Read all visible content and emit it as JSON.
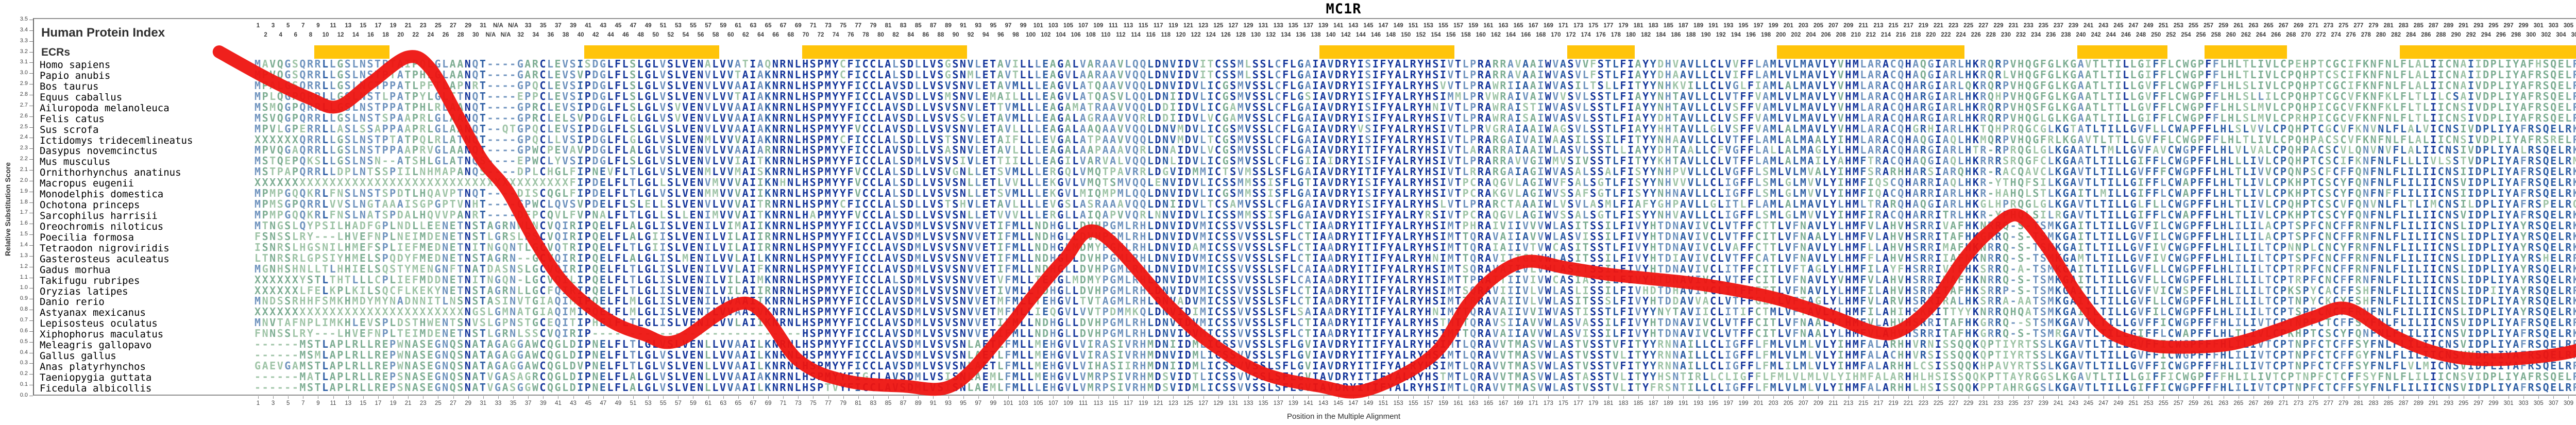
{
  "title": "MC1R",
  "panel": {
    "index_title": "Human Protein Index",
    "ecrs_label": "ECRs"
  },
  "y_axis": {
    "label": "Relative Substitution Score",
    "min": 0.0,
    "max": 3.5,
    "step": 0.1
  },
  "x_axis": {
    "label": "Position in the Multiple Alignment"
  },
  "ruler": {
    "gap_label": "N/A",
    "human_max": 317,
    "columns": 321,
    "gap_columns": [
      32,
      35
    ]
  },
  "colors": {
    "curve": "#EE1410",
    "ecr_bar": "#FFC40A",
    "tiers": [
      "#16379B",
      "#2F5FA5",
      "#6F93BE",
      "#7FAE94",
      "#9FC4A7"
    ],
    "plot_border": "#8f8f8f",
    "ruler_text": "#3c3c3c"
  },
  "ecr_bars": [
    [
      9,
      18
    ],
    [
      45,
      62
    ],
    [
      74,
      95
    ],
    [
      143,
      160
    ],
    [
      176,
      184
    ],
    [
      204,
      228
    ],
    [
      244,
      255
    ],
    [
      261,
      271
    ],
    [
      287,
      313
    ]
  ],
  "alignment": {
    "species": [
      {
        "name": "Homo sapiens",
        "seq": "MAVQGSQRRLLGSLNSTPTAIPQLGLAANQT----GARCLEVSISDGLFLSLGLVSLVENALVVATIAQNRNLHSPMYCFICCLALSDLLVSGSNVLETAVILLLEAGALVARAAVLQQLDNVIDVITCSSMLSSLCFLGAIAVDRYISIFYALRYHSIVTLPRARRAVAAIWVASVVFSTLFIAYYDHVAVLLCLVVFFLAMLVLMAVLYVHMLARACQHAQGIARLHKRQRPVHQGFGLKGAVTLTILLGIFFLCWGPFFLHLTLIVLCPEHPTCGCIFKNFNLFLALIICNAIIDPLIYAFHSQELRRTLKEVLTCSC"
      },
      {
        "name": "Papio anubis",
        "seq": "MPVQGSQRRLLGSLNSTPTATPHLGLAANQT----GARCLEVSVPDGLFLSLGLVSLVENVLVVTAIAKNRNLHSPMYCFICCLALSDLLVSGSNMLETAVTLLLEAGVLAARAAVVQQLDNVIDVITCSSMLSSLCFLGAIAVDRYISIFYALRYHSIVTLPRARRAVAAIWVASVLFSTLFIAYYDHAAVLLCLVIFFLAMLVLMAVLYVHMLARACQHAQGIARLHKRQRLVHQGFGLKGAATLTILLGIFFLCWGPFFLHLTLIVLCPQHPTCSCIFKNFNLFLALIICNAIIDPLIYAFRSQELRRTLKEVLLCSW"
      },
      {
        "name": "Bos taurus",
        "seq": "MPALGSQRRLLGSLNCTPPATLPFTLAPNRT----GPQCLEVSIPDGLFLSLGLVSLVENVLVVAAIAKNRNLHSPMYYFICCLAVSDLLVSVSNVLETAVMLLLEAGVLATQAAVVQQLDNVIDVLICGSMVSSLCFLGAIAVDRYISIFYALRYHSVVTLPRAWRIIAAIWVASILTSLLFITYYNHKVILLCLVGLFIAMLALMAVLYVHMLARACQHARGIARLQKRQRPVHQGFGLKGAATLTILLGVFFLCWGPFFLHLSLIVLCPQHPTCGCIFKNFNLFLALIICNAIVDPLIYAFRSQELRKTLQEVLQCSW"
      },
      {
        "name": "Equus caballus",
        "seq": "MPLQGPQRRLLGSLNSTLPATPYLGLTTNQT----EPPCLEVSIPDGLFLSLGLVSLVENVLVVTAIAKNRNLHSPMYYFICCLAVSDLLVSMSNVLEMAILLLLEAGVLATQASVLQQLDNIIDVLICGSMVSSLCFLGSIAVDRYISIFYALRYHSIMMLPRVWRAIVAIWVVSVLSSTLFIAYYNHTAVLLCLVTFFVAMLVLMAVLYVHMLARACQHARGIARLHKRQHPVHQGFGLKGAATLTILLGVFFLCWGPFFLHLSLLILCPQHPTCGCVFKNFKLFLTLILCSAIVDPLIYAFRSQELRKTLQEVLLCSW"
      },
      {
        "name": "Ailuropoda melanoleuca",
        "seq": "MSMQGPQRRLLGSLNSTPPATPHLRLAANQT----GPRCLEVSIPDGLFLSLGLVSVVENVLVVAAIAKNRNLHSPMYYFICCLAVSDLLVSVSNVLETTVMLLLEAGAMATRAAVVQQLDDIIDVLICGAMVSSLCFLGAIAVDRYISIFYALRYHNIVTLPRAWRAISTIWVASVLSSTLFIAYYNHTAVLLCLVSFFVAMLVLMAVLYVHMLARACQHARGIARLHKRQRPVHQSFGLKGAATLTTLLGVFFLCWGPFFLHLSLMVLCPQHPICGCVFKNFKLFLTLIICNSIVDPLIYAFRSQELRKTLQEVMLCSW"
      },
      {
        "name": "Felis catus",
        "seq": "MSVQGPQRRLLGSLNSTSPAAPRLGLAANQT----GPRCLELSVPDGLFLGLGLVSVVENVLVVAAIAKNRNLHSPMYYFICCLAVSDLLVSVSSVLETAVMLLLEAGALAGRAAVVQRLDDIIDVLVCGAMVSSLCFLGAIAVDRYISIFYALRYHSIVTLPRAWRAISAIWVASVLSSTLFIAYYDHTAVLLCLVSFFVAMLVLMAVLYVHMLARACQHARGIARLHKRQRPVHQGLGLKGAATLTILLGIFFLCWGPFFLHLSLMVLCPRHPICGCVFKNFNLFLTLIICNSIVDPLIYAFRSQELRKTLQEVLLCSW"
      },
      {
        "name": "Sus scrofa",
        "seq": "MPVLGPERRLLASLSSAPPAAPRLGLAANQT--QTGPQCLEVSIPDGLFLSLGLVSLVENVLVVAAIAKNRNLHSPMYYFVCCLAVSDLLVSVSNVLETAVLLLLEAGALAAQAAVVQQLDNVMDVLICGSMVSSLCFLGAIAVDRYVSIFYALRYHSIVTLPRVGRAIAAIWAGSVLSSTLFIAYYHHTAVLLGLVSFFVAMLALMAVLYVHMLARACQHGRHIARLHKTQHPRQGCGLKGTATLTILLGVFLLCWAPFFLHLSLVVLCPQHPTCGCVFKNVNLFLALVICNSIVDPLIYAFRSQELRKTLQEVLQCSW"
      },
      {
        "name": "Ictidomys tridecemlineatus",
        "seq": "XXXXXXQRRLLGSLNSTPTATPQLRLATNQT----GPQCLLVSIPDGLFLGLGLVSLVENMLVVVAIAKNRNLHSPMYCFICCLALSDLLVSTSNVLETAIFLLLEVGALATPAAVVQQLDNVMDVLTCGSMVSSLCFLGAIAVDRYISIFYALRYHSIVTLPRARGAIVAIWAASILSSILFITYYNHAAVLLCLVTFFLAMLALMAALYIHMLARACQHAQGIAQLHKMQRPVHQGFRLKGAVTLTTLLGVFFLCWGPFFLHLTLIVLCPQHPACSCVFKNFNLFLALIICNSIVDPLIYAFRSRELRLTLKEVLLCSW"
      },
      {
        "name": "Dasypus novemcinctus",
        "seq": "MPVQGAQRRLLGSLNSTPPAAPRVGLAANQT----GPWCPEVAVPDGLFLALGLVSLVENVLVVAAIARNRNLHSPMYYFICCLAVSDLLVSASNVLETAVLLLLEAGALAAPAAAVQRLDNAIDVLVCGSMVSSLCFLGAIAVDRYITIFYALRYHSIVTLARARRAIAAIWLASVLSSTLLIAYYDHTAALLCFVGFFLALLALMAGLYLHMLARACQHARGIARLHTR-RPRQGLGLKGAATLTMLLGVFAVCWGPFFLHLVLVALCPQHPACSCVLQNVNVFLALIICNSIVDPLIYALRSQELRKTFKEVLLCAX"
      },
      {
        "name": "Mus musculus",
        "seq": "MSTQEPQKSLLGSLNSN--ATSHLGLATNQS----EPWCLYVSIPDGLFLSLGLVSLVENVLVVIAITKNRNLHSPMYYFICCLALSDMLVSVSIVLETTIILLLEAGILVARVALVQQLDNLIDVLICGSMVSSLCFLGIIAIDRYISIFYALRYHSIVTLPRARRAVVGIWMVSIVSSTLFITYYKHTAVLLCLVTFFLAMLALMAILYAHMFTRACQHAQGIAQLHKRRRSRQGFCLKGAATLTILLGIFFLCWGPFFLHLLLIVLCPQHPTCSCIFKNFNLFLLLIVLSSTVDPLIYAFRSQELRMTLKEVLLCSW"
      },
      {
        "name": "Ornithorhynchus anatinus",
        "seq": "MSTPAPQRRLLDPLNTSSPIILNHMAPANQS----DPLCHGLFIPNEVFLTLGLVSLVENMLVVMAISKNRNLHSPMYYFVCCLALSDLLVSVGNLLETSVMLLLERGQLVMQTPAVRRLDGVIDMMICTSVMSSLSFLGAIAVDRYITIFYALRYHSIVTLRRARGAIAGIWVASALSSALFISYYNHPVVLLCLVGFFLSMLVLMVALYIHMFSRARHHARSIARQHKR-RACQAVCLKGAVTLTILLGVFFFCWGPFFLHLTLIVVCPQNPSCFCFFQNFNLFLILIICNSIIDPLIYAFRSQELRKTLKEVALCSR"
      },
      {
        "name": "Macropus eugenii",
        "seq": "XXXXXXXXXXXXXXXXXXXXXXXXXXXXXXXXXXXXXXXXXXFIPDELFLTLGLLSLVENVMVVVAIIKNHNLHSPMYYFVCCLALSDLLVSVSNLLETLVVLLLEKGVLVMQTSMVQQLENVIDVLICSSMMSSISFLGTIAVDRYISIFYALRYHSIVTPCRAQGVLAGIWVFSALSGTLFISYYNHVVVLLCLIGFFLSMLGLMVVLYIHMFIQSCQHARRIAQLHKR-YTHQFSILKGAVTLTILLGIFFLCWAPFFLHLTLIVLCPKHPTCSCYFQNFNLFLILIICNSVIDPLIYAFRSQELRKTLKEVILCSX"
      },
      {
        "name": "Monodelphis domestica",
        "seq": "MPMPGQQKRLFNSLNSTSPDTLHQAVPTNQT----DISCQGLFIPDELFLTLGLVSLVENMMVVVAIIKNRNLHSPMYYFVCCLALSDLLVSVSNLLETSVMLLLEKGVLMIQMPMLQQLDNVIDVLICGSMMSSISFLGAIAVDRYISIFYALRYHSIVTPCRAKGVLAGIWVSSAFSGTLFISYYNHNAVLLCLIGFFLSMLGLMVVLYIHMFIQACQHARRIARLHKR-HAHQLSTLKGAITLMILLGIFFLCWAPFFLHLTLIVLCPKHPTCSCYFQNFNFFLILIICNSIIDPLIYAFRSQELRKTFKEVILCSC"
      },
      {
        "name": "Ochotona princeps",
        "seq": "MPMSGPQRRLVVSLNGTAAAISGPGPTVNHT----GPWCLQVSVPDELFLSLELLSLVENVLVVVAITRNRNLHSPMYCFICCLALSDLLVSTSHVLETAVLLLLEVGSLASRAAAVQQLDNIIDVLTCSAMVSSLCFLGAIAVDRYISIFYALRYHSLVTLPRARCTAAAIWLVSVLASMLFIAFYGHPAVLLGLITLFLAMLALMAVLYLHMLTRARQHAQGIARLHKGLHPRQGLGLKGAVTLTILLGLFLLCWGPFFLHLTLIVLCPQHPTCSCVFQNVNLFLTLIMCNSILDPLIYAFRSPELRQTLKEVLQCTC"
      },
      {
        "name": "Sarcophilus harrisii",
        "seq": "MPMPGQQKRLFNSLNATSPDALHQVVPANRT----DFPCQVLFVPNALFLTLGLLSLLENIMVVVAITKNRNLHAPMYYFVCCLALSDLLVSVSNLLETVVVLLLERGLLAIQAPVVQRLNNVIDVLICSSMMSSISFLGAIAVDRYISIFYALRYRSIVTPCRAQGVLAGIWVSSALSGTLFISYYNHVAVLLCLIGFFLSMLGLMVVLYIHMFIRACQHARRITRLHKR-YPHQLSILRGAVTLTILLGIFFLCWAPFFLHLTLIVLCPKHPTCSCYFQNFNLFLILIICNSVIDPLIYAFRSQELRKTLKEVILCSW"
      },
      {
        "name": "Oreochromis niloticus",
        "seq": "MTNGSLQYPSILHADFGPLNDLLEENETNSTAGRNWLNCVQIRIPQELFLALGLISLVENILVIMAIIKNRNLHSPMYYFICCLAVSDMLVSVSNVVETIFMLLNDHGLLDVHPGMLRHLDNVIDVMICSSVVSSLSFLCTIAADRYITIFYALRYHSIMTPHRAIVIIVVVWLASITSSILFIVYHTDNAVIVCLVTFFCTTLVFNAVLYLHMFVLAHVHSRRIVAFHKNRRQ-S-TSMKGAITLTILLGVFILCWGPFFLHLILILACPTSPFCNCFFRNFNLFLILIICNSLIDPLIYAYRSQELRKTLQEMVLCSF"
      },
      {
        "name": "Poecilia formosa",
        "seq": "FSNSSLRY---LHVEFNPLNEIMDENETNSTLGRSLPSCVQIRIPQELFLALGIISLVENILVILAIIRNRNLHSPMYYFICCLAVSDMLVSVSNVVETIFMLLNDHGLLDVHPGMLRHLDNVIDVMICSSVVSSLSFLCTIAADRYITIFYALRYHSIMTTQRAVAIIAVVWLASVISSILFIVYHTDNAVIVCLVTFFCITLVFNAALYLHMFVLAHVHSRRITAFHKGRRQ-S-TSMKGAITLTILLGVFILCWGPFFLHLILILACPTSPFCNCFFRNFNLFLILIICNSLIDPLIYAYRSQELRKTLQELVLCAW"
      },
      {
        "name": "Tetraodon nigroviridis",
        "seq": "ISNRSLHGSNILHMEFSPLIEFMEDNETNITNGQNTLGCVQTRIPQELFLTLGIISLVENILVILAIIRNRNLHSPMYYFICCLAVSDMLVSVSNVVETIFMLLNDHGLMDMYPGMLRHLDNVIDAMICSSVVSSLSFLCTIAADRYITIFYALRYHSIMTTQRAIAIIVTVWCASITSSTLFIVYHTDNAVIVCLVAFFCTTLVFNAVLYLHMFLLAHVHSRRIMAFHKNRRQ-S-TSMKGAITLTILLGVFIVCWGPFFLHLILILTCPNNPLCNCYFRNFNLFLILIICNSLIDPLIYAYRSQELRKTLQELLLCSW"
      },
      {
        "name": "Gasterosteus aculeatus",
        "seq": "LTNRSRLGPSIYHMELSPQDYFMEDNETNSTAGRN--GCVQIRIPQELFLALGLISLMENILVVLAILKNRNLHSPMYYFICCLAVSDMLVSVSNVVETIFMLLNDHGLLDVHPGMLRHLDNVIDVMICSSVVSSLSFLCTIAADRYITIFYALRYHNIMTTQRAVIITGLVWLASITSSILFIVYHTDIAVIVCLVTFFCATLVFNAVLYLHMFFLAHVHSRRIIAFNKNRRQ-S-TSMKGAMTLTILLGVFIVCWGPFFLHLILILTCPTSPFCNCFFRNFNLFLILIICNSLIDPLIYAYRSHELRRTLRELVLCSW"
      },
      {
        "name": "Gadus morhua",
        "seq": "MGNHSHNLLTLHHIELSQSTYMENGNFTNATDASNSLGCVQIRIPQELFLTLGLISLVENILVVLAIFKNRNLHSPMYYFICCLAVSDMLVSVSNVVETIFMLLNDHGLLDVHPGMLRHLDNVIDVMICSSVVSSLSFLCAIAADRYITIFYALRYHSIMTSQRAVAIIVLVWLASITSSILFIVYHTDNAVIVCLITFFCITLVFTAGLYLHMFILAYFHSRRIVTFHKSRRQ-A-TSMKGAITLTILLGVFLLCWGPFFLHLILILTCPTRPFCNCFFRNFNLFLILIICNSLIDPLIYAYRSQELRKTLKELVLCSW"
      },
      {
        "name": "Takifugu rubripes",
        "seq": "XXXXXXYSTLTHTLLLCPLIEFMDDNETNITNGQN-LGCVQILIPQELFLTLGLISLVENILVILAIMKNRNLHSPMYYFICCLALSDMLVSVSNVVETVFMLLTEHGLMDMYPGMLRHLDNVIDVMICSSVVSSLSFLCAIAADRYITIFYALRYHSIMTTPRAITIIVIVWCASIASSILFIVYHTDNAVIVCLVTFFCITLVFNAVLYVHMFVLAHVHSRRIMAFHKNRRQ-S-TSMKGAITLTILLGVFLLCWGPFFLHLILILTCPTRPFCNCFFRNFNLFLILIICNSLIDPLIYAYRSQELRKTLKELVLCSW"
      },
      {
        "name": "Oryzias latipes",
        "seq": "XXXXXXLFELKPLKILSQCFLKEKYNETNSTAGRNLLGCFQIRIPQELFLTLGLISLVENILVILAIIRNRNLHSPMYYFICCLAVSDMLVSVSNVVETIVMLLTDHGLLDVHPGMLRHLDNVIDVMICSSVVSSLSFLCTIAADRYITIFYALRYHSIMTSQRAVIIIVLVWLASLISSILFIVHDTDHAVIVCLITFFFTTLVFNAVLYLHMFILAHVHSRRITAFHKSRRP-S-TSMKGAITLTILLGVFVICWSPFFLHLILILTCPKSPYCACFFSHFNLFLILIICNSLIDPIIYAYRSQELRRTLKELVFCSW"
      },
      {
        "name": "Danio rerio",
        "seq": "MNDSSRHHFSMKHMDYMYNADNNITLNSNSTASINVTGIAQIMIPQELFLMLGLISLVENILVVAAIIKNRNLHSPMYYFICCLAVSDMLVSVSNVVETMFMLLTEHGVLTVTAGMLRHLDNVADVMICSSVVSSLSFLCTIAADRYITIFYALRYHSIMTTRRAVAIIVLVWLASITSSSLFIVYHTDDAVVACLVTFFGLALVFTAGLYLHMFVLARVHSRRIRALHKSRRA-AATSMKGAITLTILLGVFLLCWGPFFLHLILILTCPTNPYCKCYFSHFNLFLILIICNSLIDPLIYAYRSQELRKTLKELIFCSW"
      },
      {
        "name": "Astyanax mexicanus",
        "seq": "XXXXXXXXXXXXXXXXXXXXXXXXXXXXNGSLGMNATGIAQIMIPQELFLMLGLISLVENILVVAAIVKNRNLHSPMYYFICCLAVSDMLVSVSNVVETMFMLLIEQGVLVVTPDMMKQLDNVIDIMICSSVVSSLSFLSAIAADRYITIFYALRYHNIMTTQRAVAIIVVIWVASTISSTLFIVYYNYTAVIICLITIFCTMLVFTAVLYLHMFILAHIHSKRITTYYKNRRQHQATSMKGAITLTILLGVFILCWGPFFLHLILILTCPTSPFCNCFFRNFNLFLILIICNSLIDPLIYAYRSQELRKTLQELVLCSW"
      },
      {
        "name": "Lepisosteus oculatus",
        "seq": "MNVTAFNPLIMKHLEVSPLDSTHWENTSNVSLGPNSTGCEQITIPHEIFLTLGLISLVENILVVLAIIKNRNLHSPMYYFICCLAVSDMLVSVSNVVETIFMLLNDHGLLDVHPGMLRHLDNVIDVMICSSVVSSLSFLCTIAADRYITIFYALRYHSTMTTQRAVSIIAVVWLASVASSILFIVYHTDNAVIVCLVTFFCITLVFNAALYLHMFVLAHVHSRRITAFHKGRRQ--STSMKGAVTLTILLGVFFICWGPFFFHLILIVTCPTNPFCTCFFSYFNLFLILIICNSVIDPLIYAFRSQELRRTLREVVLCSW"
      },
      {
        "name": "Xiphophorus maculatus",
        "seq": "FNNSSLRY---LHVEFNPLTEIMDENETNSTLGRNLSSCVQIRIP----------------------------HSPMYYFICCLAVSDMLVSVSNVVETIFMLLNDHGLLDVHPGMLRHLDNVIDVMICSSVVSSLSFLCTIAADRYITIFYALRYHSIMTTQRAVAIIAVVWLASVISSILFIVYHTDNAVIVCLVTFFCITLVFNAALYLHMFVLAHVHSRRITAFHKGRRQ-S-TSMRGAVTLTILLGIFFLCWAPFFLHLTLIVLCPKHPTCSCYFQNFNLFLILIICNSVIDPLIYAFRSQELRKTLKEVILCSW"
      },
      {
        "name": "Meleagris gallopavo",
        "seq": "------MSTLAPLRLLREPWNASEGNQSNATAGAGGAWCQGLDIPNELFLTLGLVSLVENLLVVAAILKNRNLHSPMYYFICCLAVSDMLVSVSNLAETLFMLLMEHGVLVIRASIVRHMDNIIDMLICSSVVSSLSFLGVIAVDRYITIFYALRYHSIMTLQRAVVTMASVWLASTVSSTVFITYYRNNAILLCLIGFFLFMLVLMLVLYIHMFALARHHVRNISSQQKQPTIYRTSSLKGAVTLTILLGVFFICWGPFFFHLILIVTCPTNPFCTCFFSYFNLFLILIICNSVIDPLIYAFRSQELRRTLREVVLCSW"
      },
      {
        "name": "Gallus gallus",
        "seq": "------MSMLAPLRLLREPWNASEGNQSNATAGAGGAWCQGLDIPNELFLTLGLVSLVENLLVVAAILKNRNLHSPMYYFICCLAVSDMLVSVSNLAETLFMLLMEHGVLVIRASIVRHMDNVIDMLICSSVVSSLSFLGVIAVDRYITIFYALRYHSIMTLQRAVVTMASVWLASTVSSTVLITYYRNNAILLCLIGFFLFMLVLMLVLYIHMFALACHHVRSISSQQKQPTIYRTSSLKGAVTLTILLGVFFICWGPFFFHLILIVTCPTNPFCTCFFGYFNLFLILIICNSVVDPLIYAFRSQELRRTLREVVLCSW"
      },
      {
        "name": "Anas platyrhynchos",
        "seq": "GAEVGAMSTLAPLRLLREPWNASEGNQSNATAGAGGAWCQGLDVPNELFLTLGLVSLVENLLVVAAILKNRNLHSPMYYFICCLAVSDMLVSVSNLAETLFMLLMEHGVLVIHASIIRHMDNIIDMLICSSVVSSLSFLGVIAVDRYITIFYALRYHSIMTLQRAVVTMASVWLASTVSSTVFITYYRNNAILLCLIGFFLFMLILMLVLYIHMFALARHHLCSISSQQKHPAVYRTSSLKGAVTLTILLGVFFICWGPFFFHLILIVTCPTNPFCTCFFSYFNLFLVLMICNSVIDPLIYAFRSQELRRTLREVVTCSW"
      },
      {
        "name": "Taeniopygia guttata",
        "seq": "------MATLAPLRLLREPSNASEGNQSNATVGASAGRCQGLDIPNELFLALGLVSLVENLLVVAAIAKNRNLHSPMYYFIGCLAVSDMLVSISNLAEMLFMLLMEHGVLVMRPSIVRHMDSVIDTLICSSVVSSLSFLGVIAVDRYITIFYALRYHSTMTLQRAVVTMASVWLASTASSTVLITYYHSNTIRLLCLIGFFLFMLVLMLVLYIHMFALARHHLHSISSQQKPTTAYRGGSLKGAVTLTILLGIFFICWGPFFFHLILIVTCPTNPFCTCFFSYFNLFLILIICNSVIDPLIYAFRSQELRRTLREVVTCSX"
      },
      {
        "name": "Ficedula albicollis",
        "seq": "------MSTLAPLRLLREPSNASEGNQSNATVGASGGWCQGLDIPNELFLALGLVSLVENLLVVAAILKNRNLHSPTVYFICCLAVSDMLVSISNLAEMLFMLLLEHGVLVMRPSIVRHMDSVIDMLICSSVVSSLSFLGVIAVDRYITIFYALRYHSIMTLQRAVVTMASVWLASTVSSTVLITYFRSNTILLCLIGFFLFMLVLMLVLYIHMFALARHHLHSISSQQKPPTAHRGGSLKGAVTLTILLGIFFICWGPFFFHLILIVTCPTNPFCTCFFSYFNLFLILIICNSVIDPLIYAFRSQELRRTLREVVTCSX"
      }
    ]
  },
  "chart_data": {
    "type": "line",
    "title": "MC1R",
    "xlabel": "Position in the Multiple Alignment",
    "ylabel": "Relative Substitution Score",
    "ylim": [
      0.0,
      3.5
    ],
    "xlim": [
      1,
      321
    ],
    "grid": false,
    "legend_position": "none",
    "series": [
      {
        "name": "relative-substitution-score",
        "points": [
          [
            -4.2,
            3.2
          ],
          [
            2.3,
            2.95
          ],
          [
            7.8,
            2.77
          ],
          [
            11.6,
            2.69
          ],
          [
            16.0,
            2.91
          ],
          [
            20.9,
            3.15
          ],
          [
            23.9,
            3.05
          ],
          [
            27.4,
            2.63
          ],
          [
            30.8,
            2.2
          ],
          [
            34.2,
            1.91
          ],
          [
            38.0,
            1.43
          ],
          [
            42.1,
            1.02
          ],
          [
            47.6,
            0.71
          ],
          [
            52.4,
            0.57
          ],
          [
            56.9,
            0.51
          ],
          [
            66.2,
            0.86
          ],
          [
            73.0,
            0.33
          ],
          [
            79.2,
            0.14
          ],
          [
            86.8,
            0.09
          ],
          [
            93.7,
            0.1
          ],
          [
            100.5,
            0.59
          ],
          [
            104.0,
            0.9
          ],
          [
            108.4,
            1.26
          ],
          [
            113.0,
            1.52
          ],
          [
            122.5,
            0.83
          ],
          [
            128.0,
            0.49
          ],
          [
            134.9,
            0.21
          ],
          [
            142.4,
            0.09
          ],
          [
            148.6,
            0.05
          ],
          [
            157.5,
            0.37
          ],
          [
            162.3,
            0.85
          ],
          [
            166.1,
            1.12
          ],
          [
            170.2,
            1.25
          ],
          [
            175.4,
            1.19
          ],
          [
            180.9,
            1.13
          ],
          [
            186.4,
            1.09
          ],
          [
            191.9,
            1.05
          ],
          [
            197.4,
            0.99
          ],
          [
            203.6,
            0.9
          ],
          [
            210.4,
            0.75
          ],
          [
            216.6,
            0.59
          ],
          [
            220.0,
            0.61
          ],
          [
            224.2,
            0.85
          ],
          [
            228.3,
            1.26
          ],
          [
            231.7,
            1.52
          ],
          [
            235.5,
            1.68
          ],
          [
            239.3,
            1.4
          ],
          [
            243.4,
            0.95
          ],
          [
            247.5,
            0.61
          ],
          [
            252.3,
            0.48
          ],
          [
            257.1,
            0.45
          ],
          [
            264.0,
            0.48
          ],
          [
            270.2,
            0.61
          ],
          [
            275.0,
            0.73
          ],
          [
            279.5,
            0.81
          ],
          [
            285.3,
            0.57
          ],
          [
            290.8,
            0.41
          ],
          [
            296.3,
            0.34
          ],
          [
            303.2,
            0.35
          ],
          [
            310.0,
            0.42
          ],
          [
            314.1,
            0.57
          ],
          [
            319.0,
            0.83
          ],
          [
            324.0,
            1.12
          ]
        ]
      }
    ]
  }
}
